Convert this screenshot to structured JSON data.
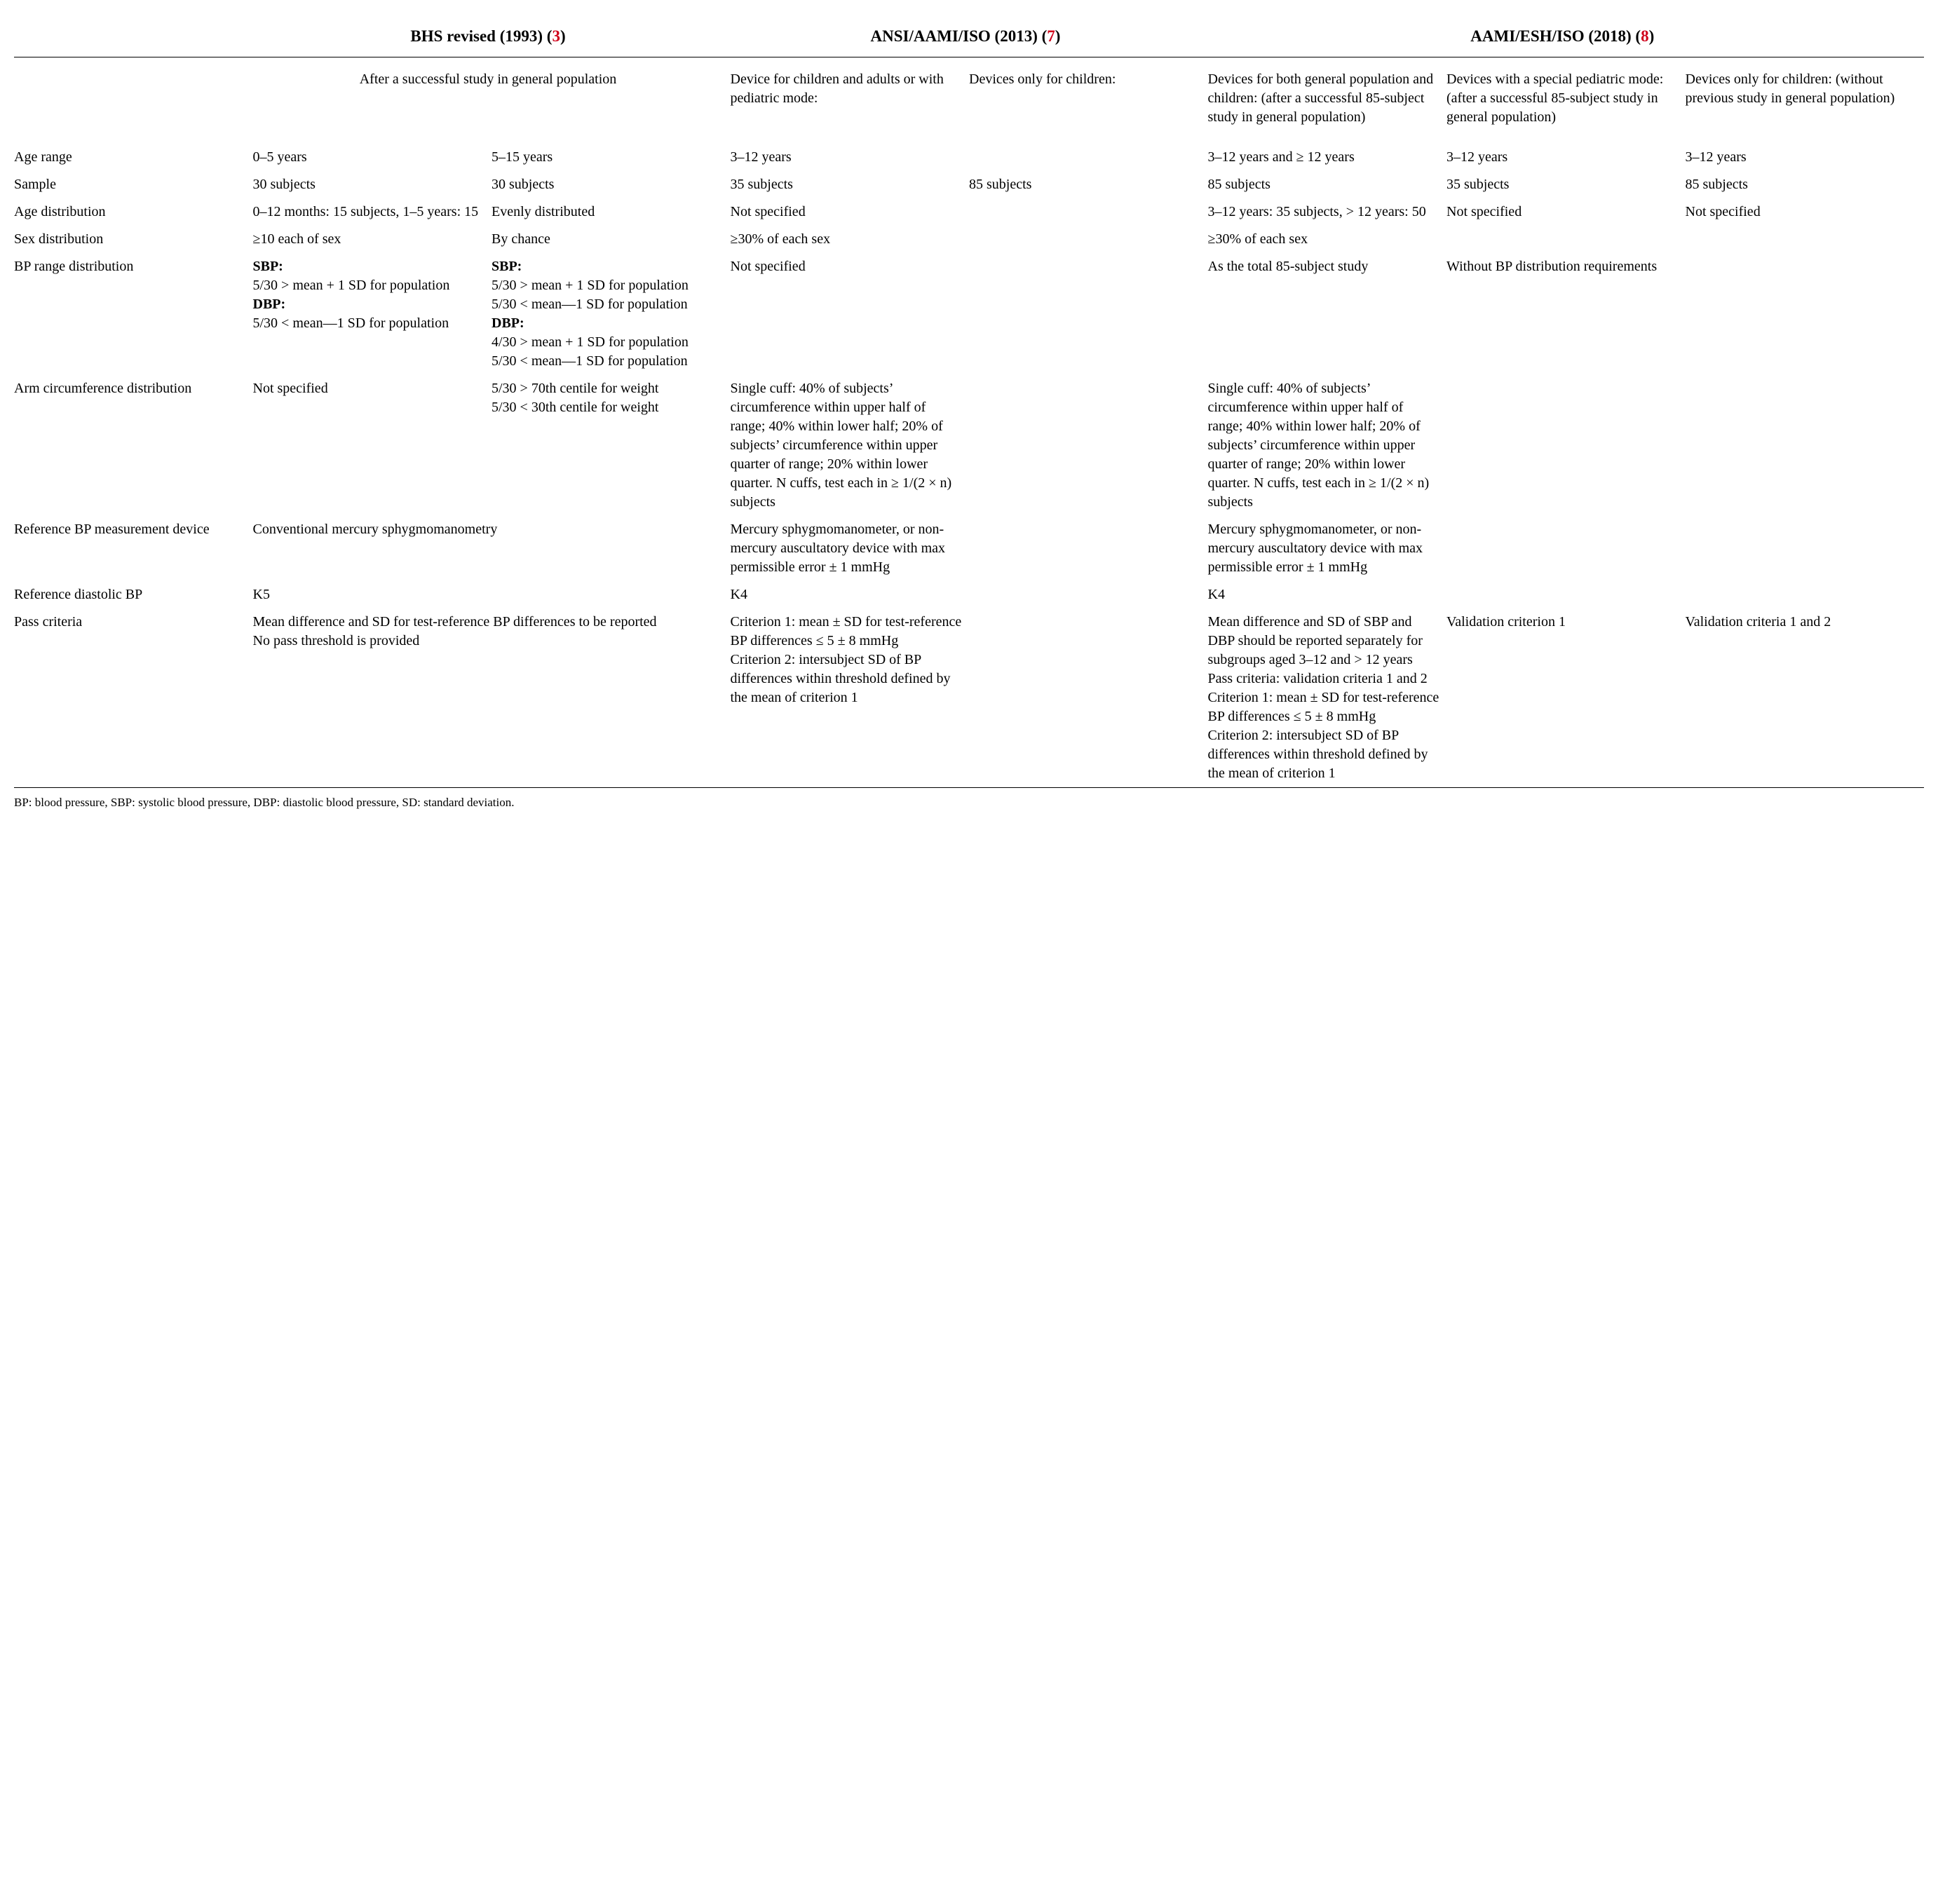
{
  "headers": {
    "h1_text": "BHS revised (1993) (",
    "h1_ref": "3",
    "h2_text": "ANSI/AAMI/ISO (2013) (",
    "h2_ref": "7",
    "h3_text": "AAMI/ESH/ISO (2018) (",
    "h3_ref": "8",
    "paren_close": ")"
  },
  "subhead": {
    "bhs": "After a successful study in general population",
    "ansi_a": "Device for children and adults or with pediatric mode:",
    "ansi_b": "Devices only for children:",
    "aami_a": "Devices for both general population and children: (after a successful 85-subject study in general population)",
    "aami_b": "Devices with a special pediatric mode: (after a successful 85-subject study in general population)",
    "aami_c": "Devices only for children: (without previous study in general population)"
  },
  "rows": {
    "age_range": {
      "label": "Age range",
      "c1": "0–5 years",
      "c2": "5–15 years",
      "c3": "3–12 years",
      "c4": "",
      "c5": "3–12 years and ≥ 12 years",
      "c6": "3–12 years",
      "c7": "3–12 years"
    },
    "sample": {
      "label": "Sample",
      "c1": "30 subjects",
      "c2": "30 subjects",
      "c3": "35 subjects",
      "c4": "85 subjects",
      "c5": "85 subjects",
      "c6": "35 subjects",
      "c7": "85 subjects"
    },
    "age_dist": {
      "label": "Age distribution",
      "c1": "0–12 months: 15 subjects, 1–5 years: 15",
      "c2": "Evenly distributed",
      "c3": "Not specified",
      "c4": "",
      "c5": "3–12 years: 35 subjects, > 12 years: 50",
      "c6": "Not specified",
      "c7": "Not specified"
    },
    "sex_dist": {
      "label": "Sex distribution",
      "c1": "≥10 each of sex",
      "c2": "By chance",
      "c3": "≥30% of each sex",
      "c4": "",
      "c5": "≥30% of each sex",
      "c6": "",
      "c7": ""
    },
    "bp_range": {
      "label": "BP range distribution",
      "c1_sbp_label": "SBP:",
      "c1_sbp": "5/30 > mean + 1 SD for population",
      "c1_dbp_label": "DBP:",
      "c1_dbp": "5/30 < mean—1 SD for population",
      "c2_sbp_label": "SBP:",
      "c2_sbp1": "5/30 > mean + 1 SD for population",
      "c2_sbp2": "5/30 < mean—1 SD for population",
      "c2_dbp_label": "DBP:",
      "c2_dbp1": "4/30 > mean + 1 SD for population",
      "c2_dbp2": "5/30 < mean—1 SD for population",
      "c3": "Not specified",
      "c5": "As the total 85-subject study",
      "c6": "Without BP distribution requirements"
    },
    "arm": {
      "label": "Arm circumference distribution",
      "c1": "Not specified",
      "c2": "5/30 > 70th centile for weight\n5/30 < 30th centile for weight",
      "c3": "Single cuff: 40% of subjects’ circumference within upper half of range; 40% within lower half; 20% of subjects’ circumference within upper quarter of range; 20% within lower quarter. N cuffs, test each in ≥ 1/(2 × n) subjects",
      "c5": "Single cuff: 40% of subjects’ circumference within upper half of range; 40% within lower half; 20% of subjects’ circumference within upper quarter of range; 20% within lower quarter. N cuffs, test each in ≥ 1/(2 × n) subjects"
    },
    "ref_device": {
      "label": "Reference BP measurement device",
      "c1": "Conventional mercury sphygmomanometry",
      "c3": "Mercury sphygmomanometer, or non-mercury auscultatory device with max permissible error ± 1 mmHg",
      "c5": "Mercury sphygmomanometer, or non-mercury auscultatory device with max permissible error ± 1 mmHg"
    },
    "ref_dbp": {
      "label": "Reference diastolic BP",
      "c1": "K5",
      "c3": "K4",
      "c5": "K4"
    },
    "pass": {
      "label": "Pass criteria",
      "c1": "Mean difference and SD for test-reference BP differences to be reported\nNo pass threshold is provided",
      "c3": "Criterion 1: mean ± SD for test-reference BP differences ≤ 5 ± 8 mmHg\nCriterion 2: intersubject SD of BP differences within threshold defined by the mean of criterion 1",
      "c5": "Mean difference and SD of SBP and DBP should be reported separately for subgroups aged 3–12 and > 12 years\nPass criteria: validation criteria 1 and 2\nCriterion 1: mean ± SD for test-reference BP differences ≤ 5 ± 8 mmHg\nCriterion 2: intersubject SD of BP differences within threshold defined by the mean of criterion 1",
      "c6": "Validation criterion 1",
      "c7": "Validation criteria 1 and 2"
    }
  },
  "footnote": "BP: blood pressure, SBP: systolic blood pressure, DBP: diastolic blood pressure, SD: standard deviation."
}
